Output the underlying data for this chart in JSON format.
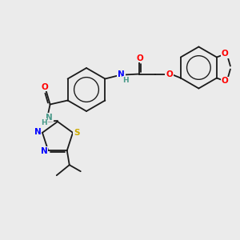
{
  "background_color": "#ebebeb",
  "figsize": [
    3.0,
    3.0
  ],
  "dpi": 100,
  "colors": {
    "bond": "#1a1a1a",
    "N": "#0000ff",
    "O": "#ff0000",
    "S": "#ccaa00",
    "NH": "#4a9a8a"
  },
  "lw": 1.3,
  "fs": 7.5
}
